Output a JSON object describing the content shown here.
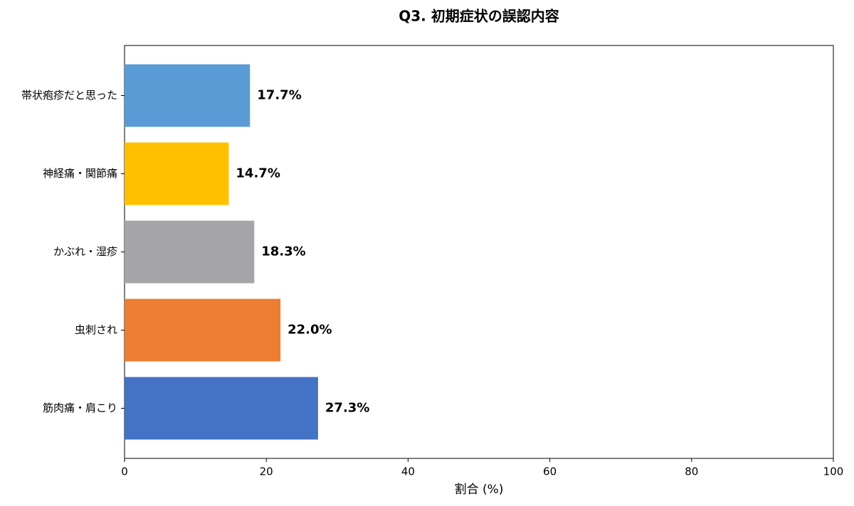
{
  "chart_data": {
    "type": "bar",
    "orientation": "horizontal",
    "title": "Q3. 初期症状の誤認内容",
    "categories": [
      "帯状疱疹だと思った",
      "神経痛・関節痛",
      "かぶれ・湿疹",
      "虫刺され",
      "筋肉痛・肩こり"
    ],
    "values": [
      17.7,
      14.7,
      18.3,
      22.0,
      27.3
    ],
    "value_labels": [
      "17.7%",
      "14.7%",
      "18.3%",
      "22.0%",
      "27.3%"
    ],
    "colors": [
      "#5b9bd5",
      "#ffc000",
      "#a5a4a8",
      "#ed7d31",
      "#4472c4"
    ],
    "xlabel": "割合 (%)",
    "xlim": [
      0,
      100
    ],
    "xticks": [
      0,
      20,
      40,
      60,
      80,
      100
    ],
    "grid": false
  }
}
